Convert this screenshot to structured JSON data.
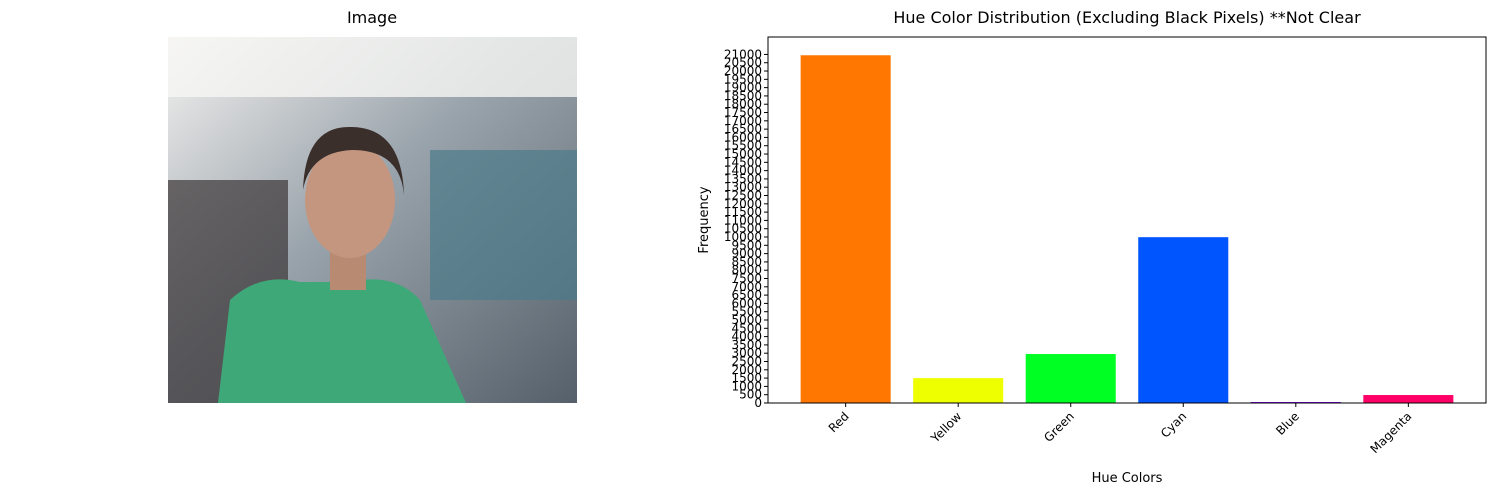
{
  "chart_data": [
    {
      "type": "image",
      "title": "Image"
    },
    {
      "type": "bar",
      "title": "Hue Color Distribution (Excluding Black Pixels) **Not Clear",
      "x_label": "Hue Colors",
      "y_label": "Frequency",
      "categories": [
        "Red",
        "Yellow",
        "Green",
        "Cyan",
        "Blue",
        "Magenta"
      ],
      "values": [
        20950,
        1500,
        2950,
        9990,
        60,
        480
      ],
      "colors": [
        "#ff7700",
        "#eeff00",
        "#00ff22",
        "#0055ff",
        "#8800ff",
        "#ff0066"
      ],
      "ylim": [
        0,
        22050
      ],
      "yticks": [
        0,
        500,
        1000,
        1500,
        2000,
        2500,
        3000,
        3500,
        4000,
        4500,
        5000,
        5500,
        6000,
        6500,
        7000,
        7500,
        8000,
        8500,
        9000,
        9500,
        10000,
        10500,
        11000,
        11500,
        12000,
        12500,
        13000,
        13500,
        14000,
        14500,
        15000,
        15500,
        16000,
        16500,
        17000,
        17500,
        18000,
        18500,
        19000,
        19500,
        20000,
        20500,
        21000
      ]
    }
  ]
}
